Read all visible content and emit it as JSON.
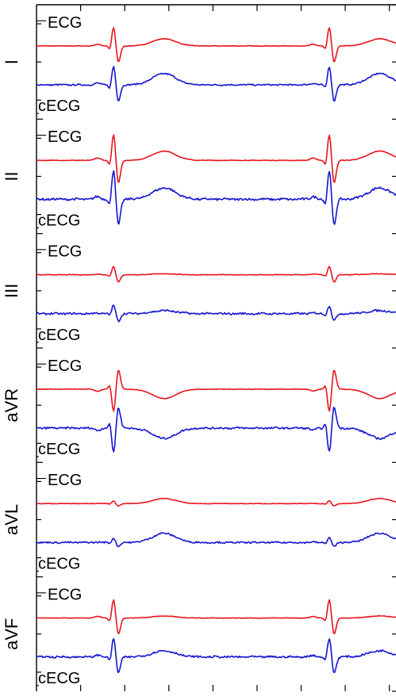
{
  "chart_data": {
    "type": "line",
    "panels": [
      {
        "lead": "I",
        "labels": [
          "ECG",
          "cECG"
        ],
        "ecg": {
          "amp": 1.0,
          "tAmp": 0.35,
          "noise": 0.08
        },
        "cecg": {
          "amp": 1.0,
          "tAmp": 0.55,
          "noise": 0.22
        }
      },
      {
        "lead": "II",
        "labels": [
          "ECG",
          "cECG"
        ],
        "ecg": {
          "amp": 1.4,
          "tAmp": 0.45,
          "noise": 0.08
        },
        "cecg": {
          "amp": 1.6,
          "tAmp": 0.55,
          "noise": 0.35
        }
      },
      {
        "lead": "III",
        "labels": [
          "ECG",
          "cECG"
        ],
        "ecg": {
          "amp": 0.45,
          "tAmp": 0.05,
          "noise": 0.1
        },
        "cecg": {
          "amp": 0.45,
          "tAmp": 0.15,
          "noise": 0.3
        }
      },
      {
        "lead": "aVR",
        "labels": [
          "ECG",
          "cECG"
        ],
        "ecg": {
          "amp": -1.2,
          "tAmp": -0.45,
          "noise": 0.08
        },
        "cecg": {
          "amp": -1.3,
          "tAmp": -0.5,
          "noise": 0.3
        }
      },
      {
        "lead": "aVL",
        "labels": [
          "ECG",
          "cECG"
        ],
        "ecg": {
          "amp": 0.15,
          "tAmp": 0.25,
          "noise": 0.08
        },
        "cecg": {
          "amp": 0.25,
          "tAmp": 0.45,
          "noise": 0.25
        }
      },
      {
        "lead": "aVF",
        "labels": [
          "ECG",
          "cECG"
        ],
        "ecg": {
          "amp": 1.0,
          "tAmp": 0.1,
          "noise": 0.08
        },
        "cecg": {
          "amp": 1.0,
          "tAmp": 0.3,
          "noise": 0.3
        }
      }
    ],
    "series_colors": {
      "ecg": "#e8141c",
      "cecg": "#1414d2"
    },
    "axis_color": "#000000",
    "beats_x": [
      0.215,
      0.815
    ],
    "x_ticks": 8,
    "y_ticks_per_panel": 3
  }
}
